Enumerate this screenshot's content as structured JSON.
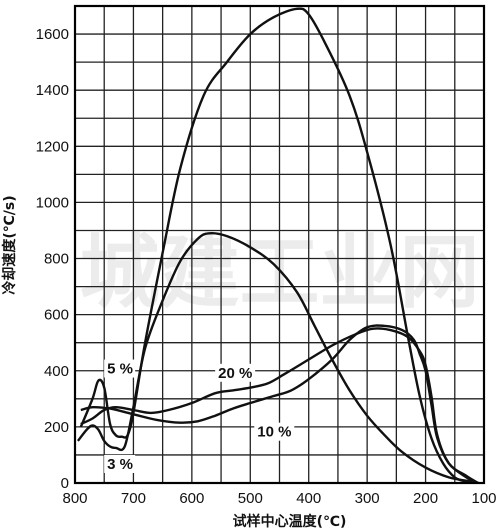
{
  "chart_data": {
    "type": "line",
    "title": "",
    "xlabel": "试样中心温度(℃)",
    "ylabel": "冷却速度(℃/s)",
    "watermark": "城建工业网",
    "xlim": [
      800,
      100
    ],
    "ylim": [
      0,
      1700
    ],
    "x_reversed": true,
    "grid": true,
    "x_ticks": [
      800,
      700,
      600,
      500,
      400,
      300,
      200,
      100
    ],
    "y_ticks": [
      0,
      200,
      400,
      600,
      800,
      1000,
      1200,
      1400,
      1600
    ],
    "x_tick_labels": [
      "800",
      "700",
      "600",
      "500",
      "400",
      "300",
      "200",
      "100"
    ],
    "y_tick_labels": [
      "0",
      "200",
      "400",
      "600",
      "800",
      "1000",
      "1200",
      "1400",
      "1600"
    ],
    "series": [
      {
        "name": "5%",
        "label_pos": [
          598,
          1010
        ],
        "points": [
          [
            790,
            200
          ],
          [
            770,
            300
          ],
          [
            760,
            365
          ],
          [
            750,
            340
          ],
          [
            740,
            210
          ],
          [
            730,
            170
          ],
          [
            720,
            165
          ],
          [
            710,
            170
          ],
          [
            700,
            250
          ],
          [
            680,
            500
          ],
          [
            650,
            820
          ],
          [
            620,
            1120
          ],
          [
            580,
            1380
          ],
          [
            540,
            1500
          ],
          [
            500,
            1600
          ],
          [
            460,
            1660
          ],
          [
            420,
            1690
          ],
          [
            400,
            1670
          ],
          [
            370,
            1560
          ],
          [
            330,
            1380
          ],
          [
            300,
            1180
          ],
          [
            260,
            850
          ],
          [
            230,
            520
          ],
          [
            210,
            310
          ],
          [
            190,
            160
          ],
          [
            170,
            70
          ],
          [
            150,
            20
          ],
          [
            130,
            5
          ]
        ]
      },
      {
        "name": "3%",
        "label_pos": [
          560,
          710
        ],
        "points": [
          [
            795,
            150
          ],
          [
            780,
            190
          ],
          [
            770,
            205
          ],
          [
            760,
            190
          ],
          [
            750,
            150
          ],
          [
            740,
            130
          ],
          [
            730,
            125
          ],
          [
            715,
            130
          ],
          [
            700,
            270
          ],
          [
            680,
            480
          ],
          [
            650,
            650
          ],
          [
            620,
            790
          ],
          [
            590,
            870
          ],
          [
            570,
            890
          ],
          [
            540,
            880
          ],
          [
            500,
            840
          ],
          [
            460,
            780
          ],
          [
            420,
            680
          ],
          [
            390,
            560
          ],
          [
            360,
            440
          ],
          [
            330,
            330
          ],
          [
            300,
            240
          ],
          [
            270,
            170
          ],
          [
            240,
            110
          ],
          [
            200,
            55
          ],
          [
            160,
            20
          ],
          [
            120,
            5
          ]
        ]
      },
      {
        "name": "20%",
        "label_pos": [
          555,
          375
        ],
        "points": [
          [
            790,
            210
          ],
          [
            770,
            230
          ],
          [
            750,
            260
          ],
          [
            730,
            270
          ],
          [
            700,
            260
          ],
          [
            670,
            250
          ],
          [
            640,
            260
          ],
          [
            600,
            285
          ],
          [
            560,
            320
          ],
          [
            530,
            330
          ],
          [
            500,
            340
          ],
          [
            470,
            355
          ],
          [
            440,
            390
          ],
          [
            400,
            440
          ],
          [
            360,
            490
          ],
          [
            320,
            530
          ],
          [
            290,
            550
          ],
          [
            260,
            545
          ],
          [
            230,
            520
          ],
          [
            210,
            470
          ],
          [
            200,
            420
          ],
          [
            190,
            310
          ],
          [
            180,
            170
          ],
          [
            160,
            70
          ],
          [
            130,
            25
          ],
          [
            110,
            0
          ]
        ]
      },
      {
        "name": "10%",
        "label_pos": [
          488,
          165
        ],
        "points": [
          [
            790,
            260
          ],
          [
            770,
            270
          ],
          [
            740,
            265
          ],
          [
            700,
            245
          ],
          [
            660,
            225
          ],
          [
            620,
            215
          ],
          [
            590,
            220
          ],
          [
            560,
            240
          ],
          [
            530,
            265
          ],
          [
            500,
            285
          ],
          [
            460,
            310
          ],
          [
            430,
            330
          ],
          [
            400,
            370
          ],
          [
            360,
            440
          ],
          [
            330,
            510
          ],
          [
            300,
            555
          ],
          [
            270,
            560
          ],
          [
            240,
            545
          ],
          [
            220,
            510
          ],
          [
            210,
            460
          ],
          [
            200,
            400
          ],
          [
            190,
            280
          ],
          [
            180,
            160
          ],
          [
            160,
            70
          ],
          [
            130,
            20
          ],
          [
            110,
            0
          ]
        ]
      }
    ],
    "extra_labels": [
      {
        "text": "5 %",
        "series": "5%",
        "pos": [
          745,
          390
        ]
      },
      {
        "text": "3 %",
        "series": "3%",
        "pos": [
          745,
          50
        ]
      },
      {
        "text": "20 %",
        "series": "20%",
        "pos": [
          555,
          375
        ]
      },
      {
        "text": "10 %",
        "series": "10%",
        "pos": [
          488,
          165
        ]
      }
    ]
  }
}
